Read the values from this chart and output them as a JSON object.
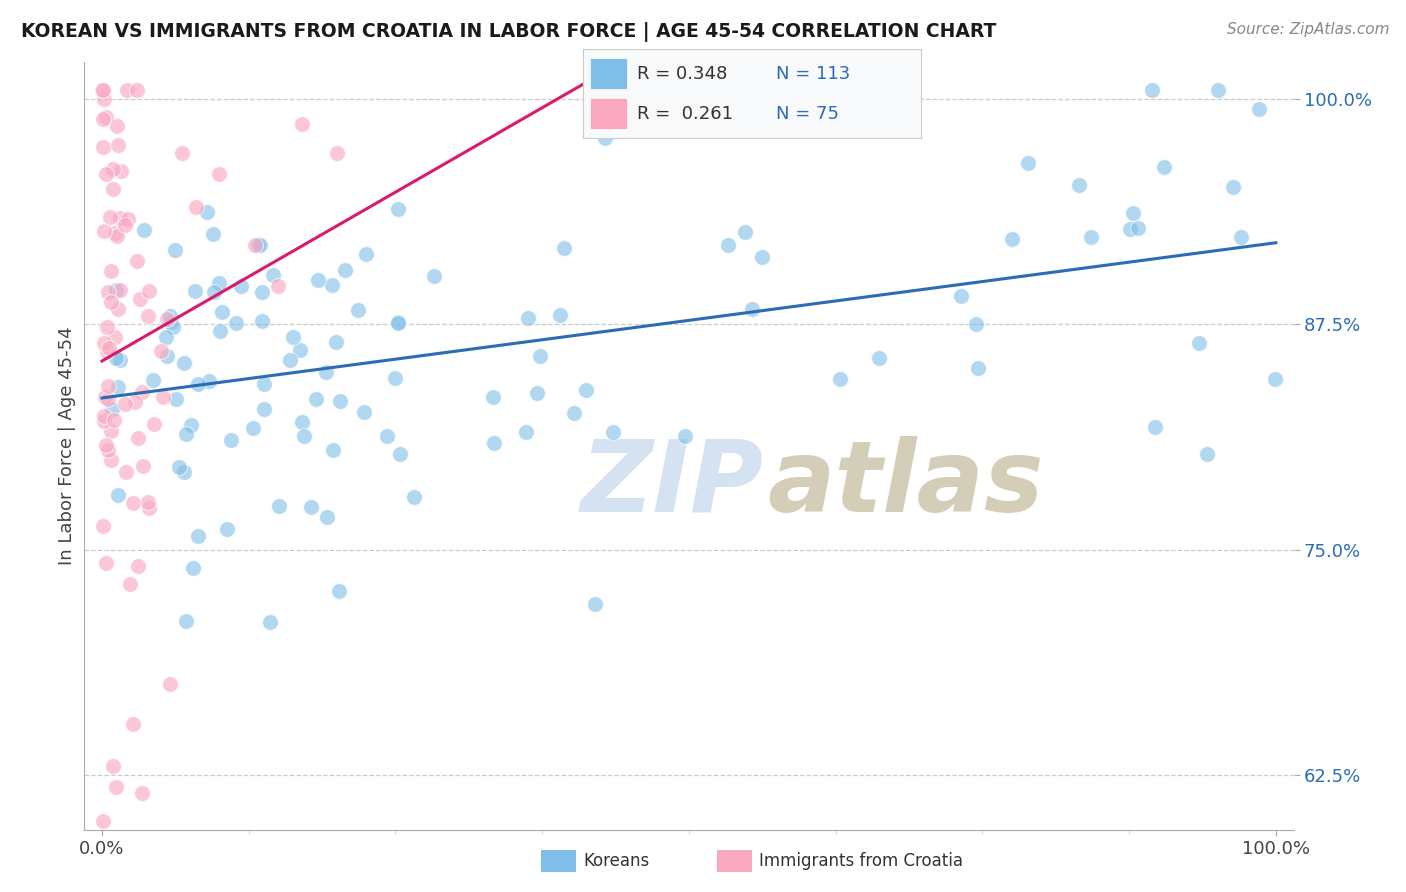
{
  "title": "KOREAN VS IMMIGRANTS FROM CROATIA IN LABOR FORCE | AGE 45-54 CORRELATION CHART",
  "source": "Source: ZipAtlas.com",
  "ylabel": "In Labor Force | Age 45-54",
  "xlim": [
    0.0,
    1.0
  ],
  "ylim": [
    0.595,
    1.02
  ],
  "xticklabels": [
    "0.0%",
    "100.0%"
  ],
  "yticklabels": [
    "62.5%",
    "75.0%",
    "87.5%",
    "100.0%"
  ],
  "yticks": [
    0.625,
    0.75,
    0.875,
    1.0
  ],
  "korean_R": 0.348,
  "korean_N": 113,
  "croatia_R": 0.261,
  "croatia_N": 75,
  "legend_label1": "Koreans",
  "legend_label2": "Immigrants from Croatia",
  "scatter_color_korean": "#7fbee8",
  "scatter_color_croatia": "#f9a8c0",
  "line_color_korean": "#2b6cb5",
  "line_color_croatia": "#d91b6e",
  "background_color": "#ffffff",
  "watermark_zip_color": "#d0dff0",
  "watermark_atlas_color": "#d0c8b0"
}
